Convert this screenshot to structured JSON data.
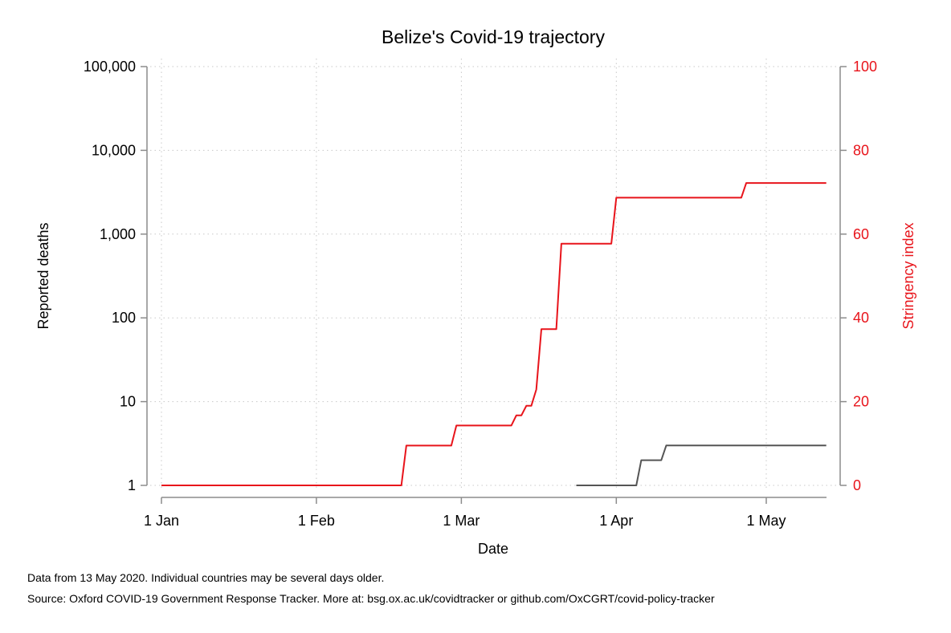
{
  "chart_data": {
    "type": "line",
    "title": "Belize's Covid-19 trajectory",
    "xlabel": "Date",
    "ylabel_left": "Reported deaths",
    "ylabel_right": "Stringency index",
    "x_ticks": [
      "1 Jan",
      "1 Feb",
      "1 Mar",
      "1 Apr",
      "1 May"
    ],
    "x_tick_dates": [
      "2020-01-01",
      "2020-02-01",
      "2020-03-01",
      "2020-04-01",
      "2020-05-01"
    ],
    "xlim": [
      "2020-01-01",
      "2020-05-13"
    ],
    "y_left_scale": "log",
    "y_left_ticks": [
      1,
      10,
      100,
      1000,
      10000,
      100000
    ],
    "y_left_tick_labels": [
      "1",
      "10",
      "100",
      "1,000",
      "10,000",
      "100,000"
    ],
    "y_right_ticks": [
      0,
      20,
      40,
      60,
      80,
      100
    ],
    "y_right_tick_labels": [
      "0",
      "20",
      "40",
      "60",
      "80",
      "100"
    ],
    "y_right_lim": [
      0,
      100
    ],
    "grid": true,
    "series": [
      {
        "axis": "right",
        "color": "#e8141b",
        "step": true,
        "points": [
          [
            "2020-01-01",
            0
          ],
          [
            "2020-02-18",
            0
          ],
          [
            "2020-02-19",
            9.5
          ],
          [
            "2020-02-28",
            9.5
          ],
          [
            "2020-02-29",
            14.3
          ],
          [
            "2020-03-11",
            14.3
          ],
          [
            "2020-03-12",
            16.7
          ],
          [
            "2020-03-13",
            16.7
          ],
          [
            "2020-03-14",
            19
          ],
          [
            "2020-03-15",
            19
          ],
          [
            "2020-03-16",
            22.9
          ],
          [
            "2020-03-17",
            37.3
          ],
          [
            "2020-03-20",
            37.3
          ],
          [
            "2020-03-21",
            57.7
          ],
          [
            "2020-03-31",
            57.7
          ],
          [
            "2020-04-01",
            68.7
          ],
          [
            "2020-04-26",
            68.7
          ],
          [
            "2020-04-27",
            72.2
          ],
          [
            "2020-05-13",
            72.2
          ]
        ]
      },
      {
        "axis": "left",
        "color": "#555555",
        "step": true,
        "points": [
          [
            "2020-03-24",
            1
          ],
          [
            "2020-04-05",
            1
          ],
          [
            "2020-04-06",
            2
          ],
          [
            "2020-04-10",
            2
          ],
          [
            "2020-04-11",
            3
          ],
          [
            "2020-05-13",
            3
          ]
        ]
      }
    ]
  },
  "footnotes": {
    "line1": "Data from 13 May 2020. Individual countries may be several days older.",
    "line2": "Source: Oxford COVID-19 Government Response Tracker. More at: bsg.ox.ac.uk/covidtracker or github.com/OxCGRT/covid-policy-tracker"
  },
  "colors": {
    "stringency": "#e8141b",
    "deaths": "#555555",
    "axis": "#8c8c8c",
    "grid": "#c8c8c8"
  }
}
